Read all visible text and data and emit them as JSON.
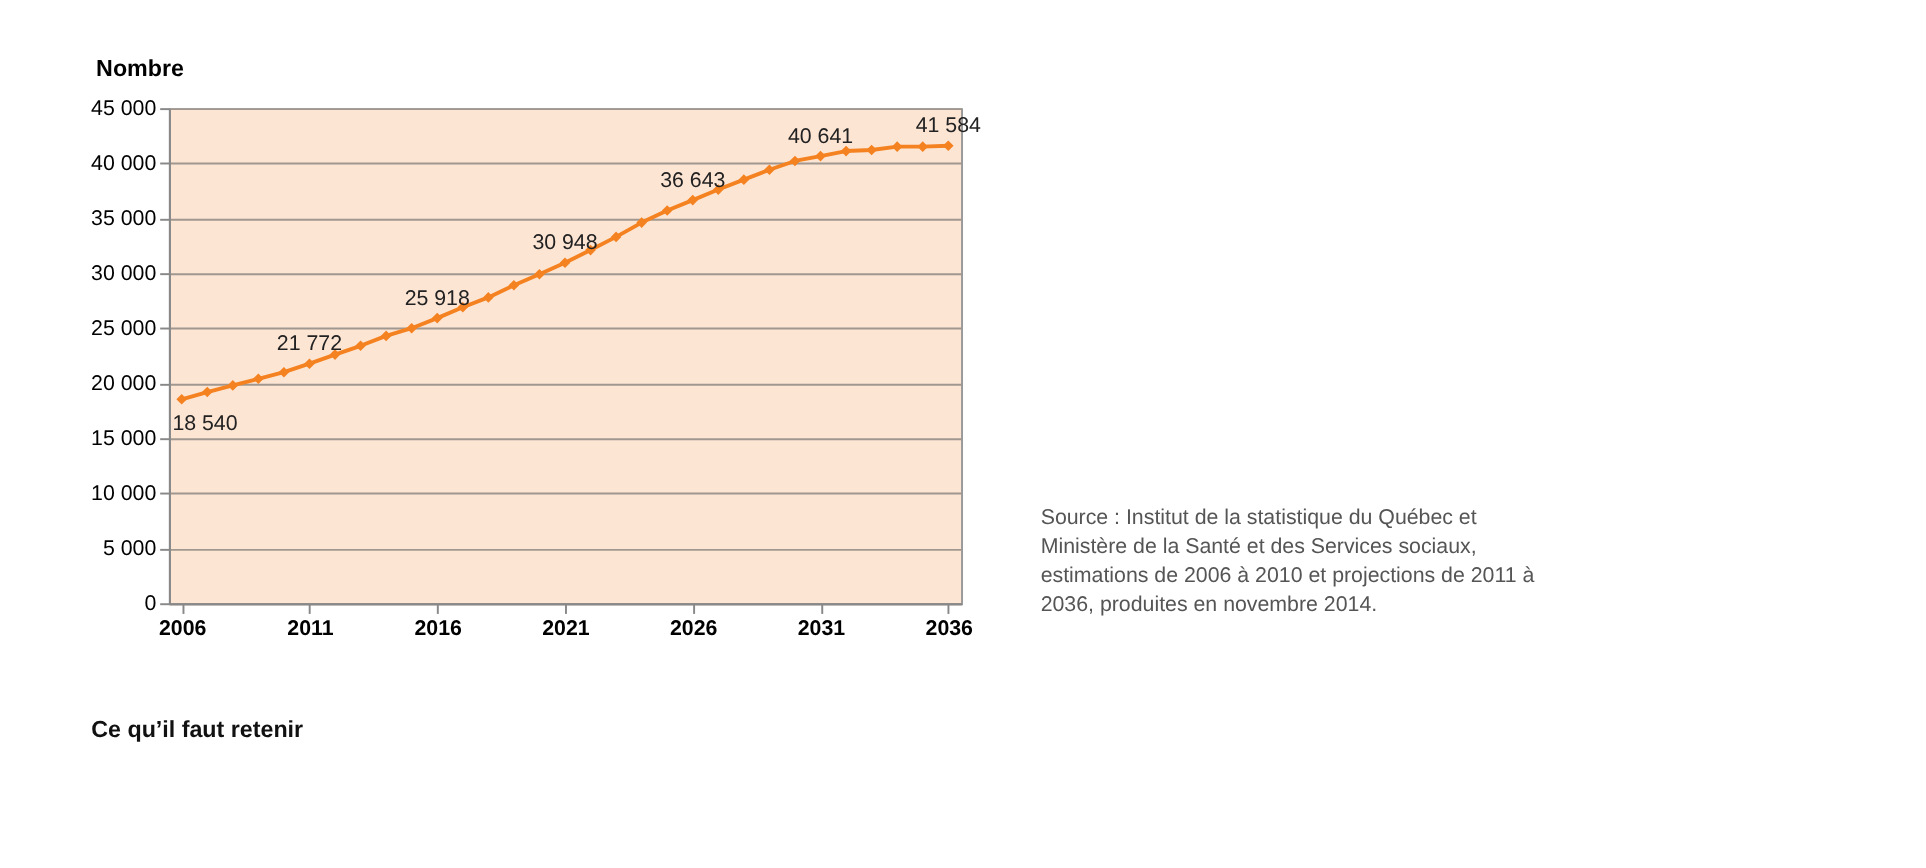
{
  "chart_data": {
    "type": "line",
    "ylabel": "Nombre",
    "x": [
      2006,
      2007,
      2008,
      2009,
      2010,
      2011,
      2012,
      2013,
      2014,
      2015,
      2016,
      2017,
      2018,
      2019,
      2020,
      2021,
      2022,
      2023,
      2024,
      2025,
      2026,
      2027,
      2028,
      2029,
      2030,
      2031,
      2032,
      2033,
      2034,
      2035,
      2036
    ],
    "series": [
      {
        "color": "#f58220",
        "values": [
          18540,
          19200,
          19800,
          20400,
          21000,
          21772,
          22600,
          23400,
          24300,
          25000,
          25918,
          26900,
          27800,
          28900,
          29900,
          30948,
          32100,
          33300,
          34600,
          35700,
          36643,
          37600,
          38500,
          39400,
          40200,
          40641,
          41100,
          41200,
          41500,
          41500,
          41584
        ],
        "value_labels": [
          "18 540",
          null,
          null,
          null,
          null,
          "21 772",
          null,
          null,
          null,
          null,
          "25 918",
          null,
          null,
          null,
          null,
          "30 948",
          null,
          null,
          null,
          null,
          "36 643",
          null,
          null,
          null,
          null,
          "40 641",
          null,
          null,
          null,
          null,
          "41 584"
        ]
      }
    ],
    "xlim": [
      2005.5,
      2036.5
    ],
    "xticks": [
      2006,
      2011,
      2016,
      2021,
      2026,
      2031,
      2036
    ],
    "ylim": [
      0,
      45000
    ],
    "yticks": [
      0,
      {
        "value": 5000,
        "label": "5 000"
      },
      {
        "value": 10000,
        "label": "10 000"
      },
      {
        "value": 15000,
        "label": "15 000"
      },
      {
        "value": 20000,
        "label": "20 000"
      },
      {
        "value": 25000,
        "label": "25 000"
      },
      {
        "value": 30000,
        "label": "30 000"
      },
      {
        "value": 35000,
        "label": "35 000"
      },
      {
        "value": 40000,
        "label": "40 000"
      },
      {
        "value": 45000,
        "label": "45 000"
      }
    ],
    "grid": "y",
    "marker": "diamond",
    "line_style": "solid",
    "annotations": [
      "Source : Institut de la statistique du Québec et Ministère de la Santé et des Services sociaux, estimations de 2006 à 2010 et projections de 2011 à 2036, produites en novembre 2014.",
      "Ce qu’il faut retenir"
    ]
  }
}
